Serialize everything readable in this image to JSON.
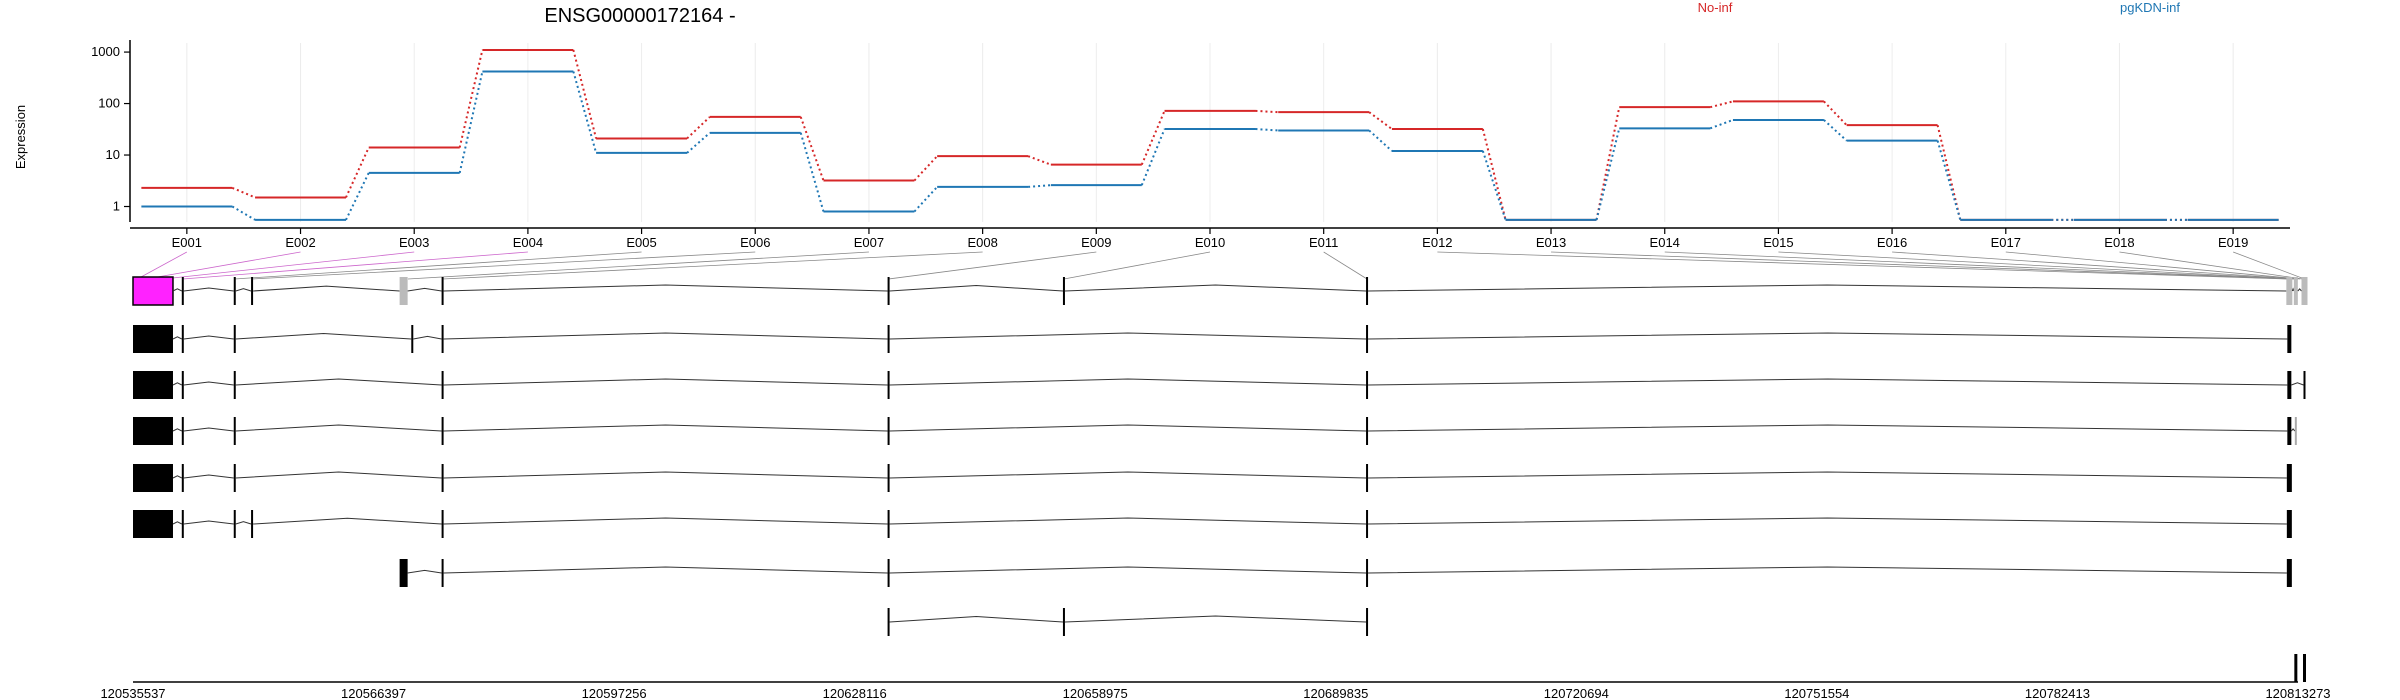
{
  "chart_data": {
    "type": "line",
    "title": "ENSG00000172164 -",
    "ylabel": "Expression",
    "y_scale": "log",
    "ylim": [
      0.5,
      1200
    ],
    "y_ticks": [
      1,
      10,
      100,
      1000
    ],
    "y_tick_labels": [
      "1",
      "10",
      "100",
      "1000"
    ],
    "grid": true,
    "legend_position": "top",
    "categories": [
      "E001",
      "E002",
      "E003",
      "E004",
      "E005",
      "E006",
      "E007",
      "E008",
      "E009",
      "E010",
      "E011",
      "E012",
      "E013",
      "E014",
      "E015",
      "E016",
      "E017",
      "E018",
      "E019"
    ],
    "series": [
      {
        "name": "No-inf",
        "color": "#d62728",
        "values": [
          2.3,
          1.5,
          14,
          1100,
          21,
          55,
          3.2,
          9.5,
          6.5,
          72,
          68,
          32,
          0.55,
          85,
          110,
          38,
          0.55,
          0.55,
          0.55
        ]
      },
      {
        "name": "pgKDN-inf",
        "color": "#1f77b4",
        "values": [
          1.0,
          0.55,
          4.5,
          420,
          11,
          27,
          0.8,
          2.4,
          2.6,
          32,
          30,
          12,
          0.55,
          33,
          48,
          19,
          0.55,
          0.55,
          0.55
        ]
      }
    ],
    "genomic_axis": {
      "tick_labels": [
        "120535537",
        "120566397",
        "120597256",
        "120628116",
        "120658975",
        "120689835",
        "120720694",
        "120751554",
        "120782413",
        "120813273"
      ]
    },
    "gene_model": {
      "highlighted_exon": "E001",
      "highlight_color": "#ff22ff",
      "transcript_count": 9
    }
  }
}
